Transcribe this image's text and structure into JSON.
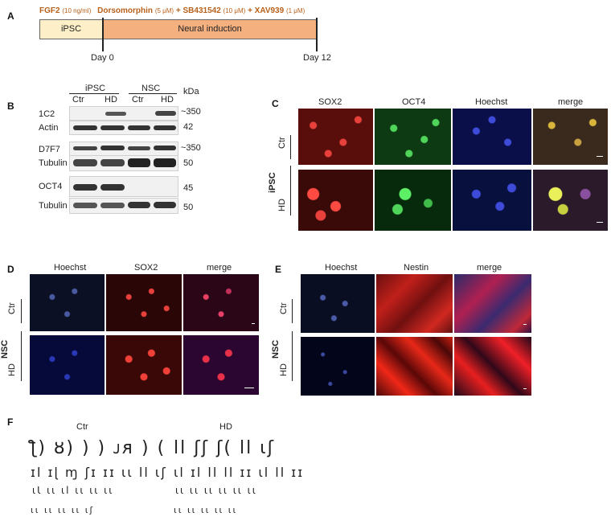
{
  "panels": {
    "A": "A",
    "B": "B",
    "C": "C",
    "D": "D",
    "E": "E",
    "F": "F"
  },
  "panelA": {
    "fgf2": "FGF2",
    "fgf2_conc": "(10 ng/ml)",
    "dorso": "Dorsomorphin",
    "dorso_conc": "(5 μM)",
    "sb": "+ SB431542",
    "sb_conc": "(10 μM)",
    "xav": "+ XAV939",
    "xav_conc": "(1 μM)",
    "ipsc": "iPSC",
    "neural": "Neural induction",
    "day0": "Day 0",
    "day12": "Day 12"
  },
  "panelB": {
    "group_ipsc": "iPSC",
    "group_nsc": "NSC",
    "lanes": [
      "Ctr",
      "HD",
      "Ctr",
      "HD"
    ],
    "kda": "kDa",
    "rows": [
      {
        "label": "1C2",
        "kda": "~350"
      },
      {
        "label": "Actin",
        "kda": "42"
      },
      {
        "label": "D7F7",
        "kda": "~350"
      },
      {
        "label": "Tubulin",
        "kda": "50"
      },
      {
        "label": "OCT4",
        "kda": "45"
      },
      {
        "label": "Tubulin",
        "kda": "50"
      }
    ]
  },
  "panelC": {
    "columns": [
      "SOX2",
      "OCT4",
      "Hoechst",
      "merge"
    ],
    "row_group": "iPSC",
    "rows": [
      "Ctr",
      "HD"
    ]
  },
  "panelD": {
    "columns": [
      "Hoechst",
      "SOX2",
      "merge"
    ],
    "row_group": "NSC",
    "rows": [
      "Ctr",
      "HD"
    ]
  },
  "panelE": {
    "columns": [
      "Hoechst",
      "Nestin",
      "merge"
    ],
    "row_group": "NSC",
    "rows": [
      "Ctr",
      "HD"
    ]
  },
  "panelF": {
    "ctr": "Ctr",
    "hd": "HD"
  },
  "colors": {
    "accent_orange": "#b8611c",
    "ipsc_box": "#fdf0c8",
    "neural_box": "#f5b07f",
    "red_channel": "#d8261e",
    "green_channel": "#2fb33a",
    "blue_channel": "#2435c8"
  }
}
